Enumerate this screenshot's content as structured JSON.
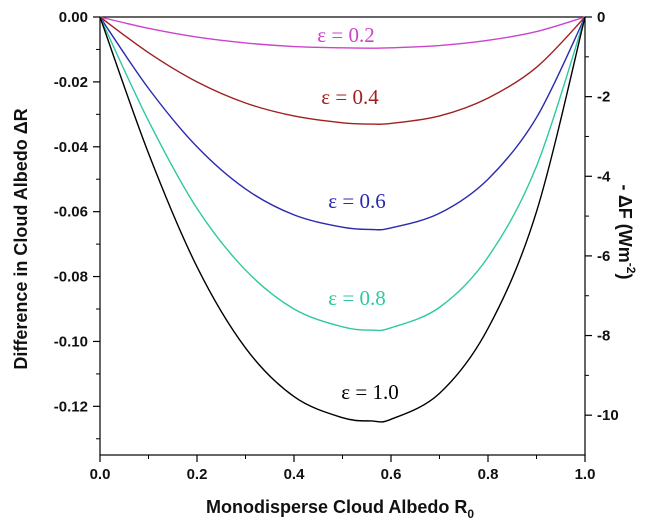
{
  "chart_data": {
    "type": "line",
    "title": "",
    "xlabel": "Monodisperse Cloud Albedo R",
    "xlabel_subscript": "0",
    "ylabel": "Difference in Cloud Albedo ΔR",
    "y2label": "- ΔF (Wm",
    "y2label_superscript": "-2",
    "y2label_close": ")",
    "xlim": [
      0.0,
      1.0
    ],
    "ylim": [
      -0.135,
      0.0
    ],
    "y2lim": [
      -11.0,
      0.0
    ],
    "grid": false,
    "legend": "none",
    "x_ticks": [
      "0.0",
      "0.2",
      "0.4",
      "0.6",
      "0.8",
      "1.0"
    ],
    "y_ticks": [
      "0.00",
      "-0.02",
      "-0.04",
      "-0.06",
      "-0.08",
      "-0.10",
      "-0.12"
    ],
    "y2_ticks": [
      "0",
      "-2",
      "-4",
      "-6",
      "-8",
      "-10"
    ],
    "x": [
      0.0,
      0.1,
      0.2,
      0.3,
      0.4,
      0.5,
      0.56,
      0.6,
      0.7,
      0.8,
      0.9,
      1.0
    ],
    "series": [
      {
        "label": "ε = 0.2",
        "color": "#cc44cc",
        "values": [
          0.0,
          -0.0035,
          -0.0062,
          -0.008,
          -0.0091,
          -0.0095,
          -0.0096,
          -0.0095,
          -0.0088,
          -0.0072,
          -0.0045,
          0.0
        ]
      },
      {
        "label": "ε = 0.4",
        "color": "#a02020",
        "values": [
          0.0,
          -0.011,
          -0.02,
          -0.0265,
          -0.0305,
          -0.0326,
          -0.033,
          -0.0328,
          -0.0305,
          -0.025,
          -0.0155,
          0.0
        ]
      },
      {
        "label": "ε = 0.6",
        "color": "#2a2ab0",
        "values": [
          0.0,
          -0.022,
          -0.04,
          -0.053,
          -0.061,
          -0.0648,
          -0.0655,
          -0.065,
          -0.0605,
          -0.05,
          -0.031,
          0.0
        ]
      },
      {
        "label": "ε = 0.8",
        "color": "#2ec8a0",
        "values": [
          0.0,
          -0.032,
          -0.059,
          -0.078,
          -0.09,
          -0.0955,
          -0.0965,
          -0.0958,
          -0.0895,
          -0.074,
          -0.046,
          0.0
        ]
      },
      {
        "label": "ε = 1.0",
        "color": "#000000",
        "values": [
          0.0,
          -0.042,
          -0.077,
          -0.102,
          -0.117,
          -0.1235,
          -0.1245,
          -0.124,
          -0.116,
          -0.096,
          -0.06,
          0.0
        ]
      }
    ]
  }
}
